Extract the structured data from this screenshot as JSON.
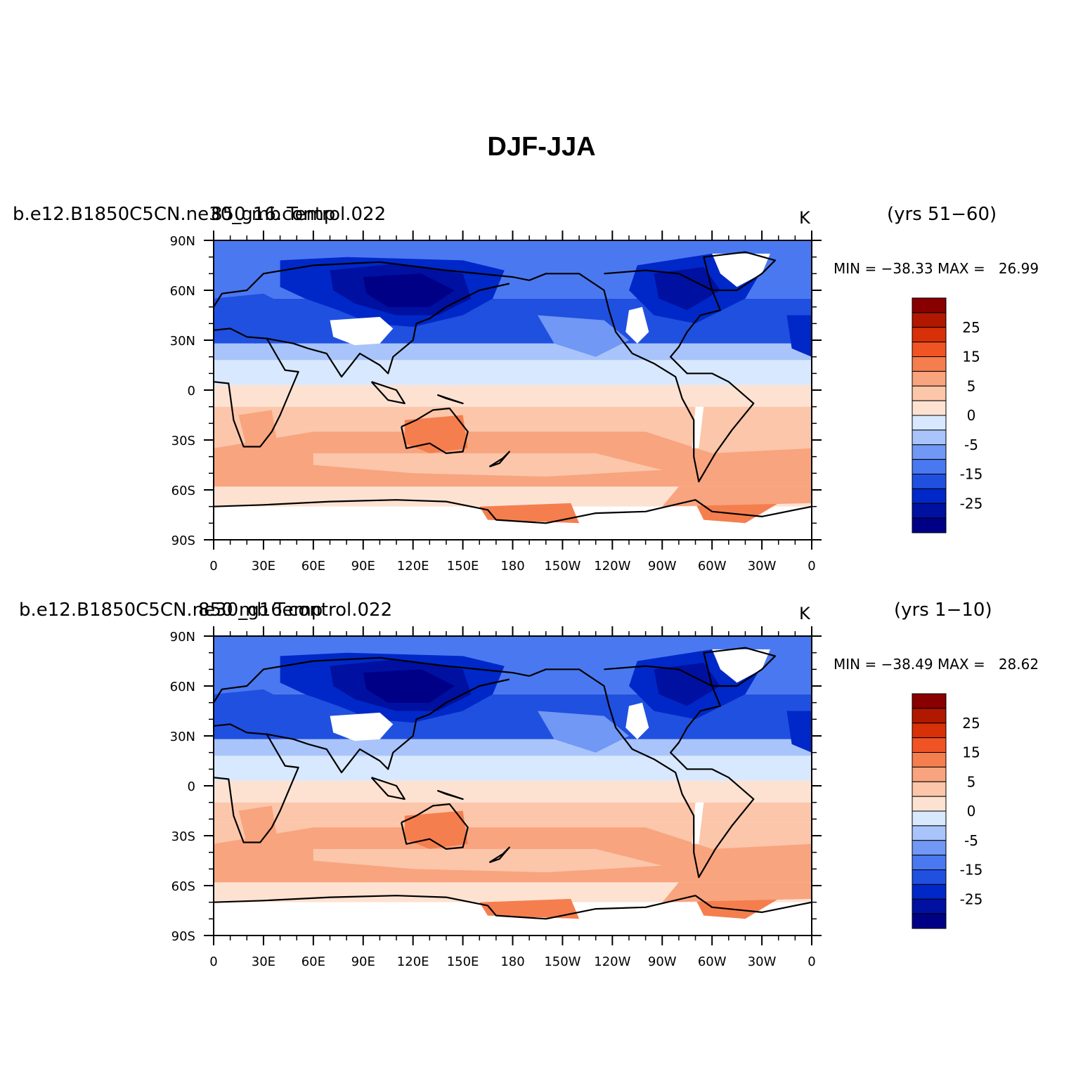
{
  "figure": {
    "title": "DJF-JJA",
    "colorbar": {
      "colors": [
        "#000087",
        "#0010a0",
        "#0028c8",
        "#2050e0",
        "#4a78f0",
        "#7098f4",
        "#a8c4fa",
        "#d8e8fe",
        "#fde2d2",
        "#fbc6aa",
        "#f8a47e",
        "#f57e4e",
        "#f05424",
        "#d83008",
        "#b01800",
        "#880000"
      ],
      "labels": [
        "25",
        "15",
        "5",
        "0",
        "-5",
        "-15",
        "-25"
      ]
    },
    "map": {
      "lat_labels": [
        "90N",
        "60N",
        "30N",
        "0",
        "30S",
        "60S",
        "90S"
      ],
      "lon_labels": [
        "0",
        "30E",
        "60E",
        "90E",
        "120E",
        "150E",
        "180",
        "150W",
        "120W",
        "90W",
        "60W",
        "30W",
        "0"
      ]
    },
    "panels": [
      {
        "case": "b.e12.B1850C5CN.ne30_g16.control.022",
        "variable": "850 mb Temp",
        "units": "K",
        "period": "(yrs 51−60)",
        "min": "−38.33",
        "max": "26.99",
        "min_label": "MIN = ",
        "max_label": "MAX = "
      },
      {
        "case": "b.e12.B1850C5CN.ne30_g16.control.022",
        "variable": "850 mb Temp",
        "units": "K",
        "period": "(yrs 1−10)",
        "min": "−38.49",
        "max": "28.62",
        "min_label": "MIN = ",
        "max_label": "MAX = "
      }
    ]
  }
}
